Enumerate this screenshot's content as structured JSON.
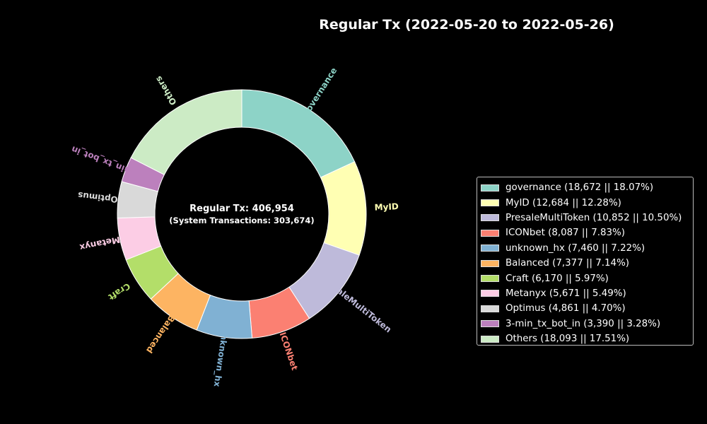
{
  "chart_data": {
    "type": "pie",
    "title": "Regular Tx (2022-05-20 to 2022-05-26)",
    "center_text": "Regular Tx: 406,954",
    "center_subtext": "(System Transactions: 303,674)",
    "legend_placement": "right",
    "slices": [
      {
        "label": "governance",
        "value": 18672,
        "percent": 18.07,
        "color": "#8dd3c7",
        "legend": "governance (18,672 || 18.07%)"
      },
      {
        "label": "MyID",
        "value": 12684,
        "percent": 12.28,
        "color": "#ffffb3",
        "legend": "MyID (12,684 || 12.28%)"
      },
      {
        "label": "PresaleMultiToken",
        "value": 10852,
        "percent": 10.5,
        "color": "#bebada",
        "legend": "PresaleMultiToken (10,852 || 10.50%)"
      },
      {
        "label": "ICONbet",
        "value": 8087,
        "percent": 7.83,
        "color": "#fb8072",
        "legend": "ICONbet (8,087 || 7.83%)"
      },
      {
        "label": "unknown_hx",
        "value": 7460,
        "percent": 7.22,
        "color": "#80b1d3",
        "legend": "unknown_hx (7,460 || 7.22%)"
      },
      {
        "label": "Balanced",
        "value": 7377,
        "percent": 7.14,
        "color": "#fdb462",
        "legend": "Balanced (7,377 || 7.14%)"
      },
      {
        "label": "Craft",
        "value": 6170,
        "percent": 5.97,
        "color": "#b3de69",
        "legend": "Craft (6,170 || 5.97%)"
      },
      {
        "label": "Metanyx",
        "value": 5671,
        "percent": 5.49,
        "color": "#fccde5",
        "legend": "Metanyx (5,671 || 5.49%)"
      },
      {
        "label": "Optimus",
        "value": 4861,
        "percent": 4.7,
        "color": "#d9d9d9",
        "legend": "Optimus (4,861 || 4.70%)"
      },
      {
        "label": "3-min_tx_bot_in",
        "value": 3390,
        "percent": 3.28,
        "color": "#bc80bd",
        "legend": "3-min_tx_bot_in (3,390 || 3.28%)"
      },
      {
        "label": "Others",
        "value": 18093,
        "percent": 17.51,
        "color": "#ccebc5",
        "legend": "Others (18,093 || 17.51%)"
      }
    ]
  }
}
